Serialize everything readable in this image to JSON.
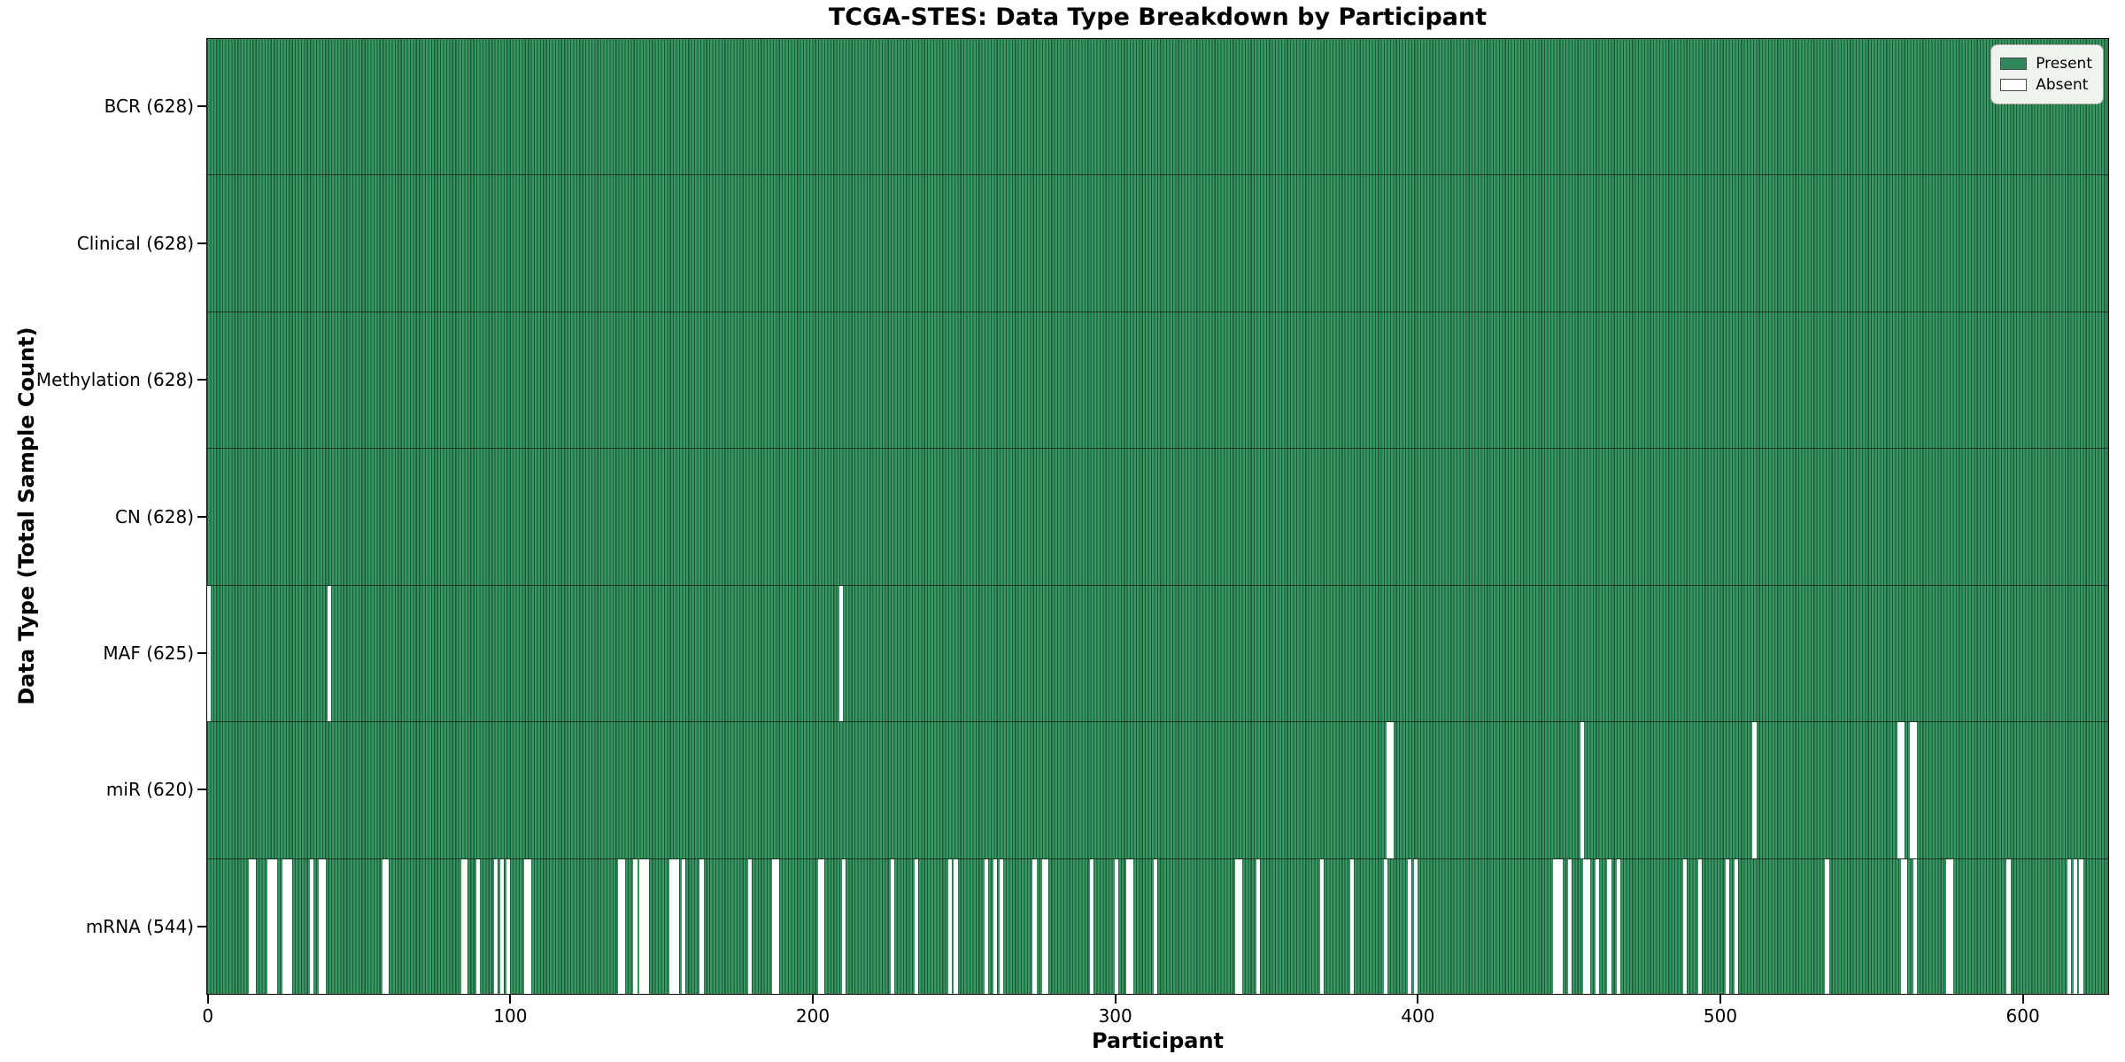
{
  "colors": {
    "present_fill": "#389663",
    "present_edge": "#1d5837",
    "legend_present": "#2e8659",
    "absent": "#ffffff",
    "row_separator": "rgba(0,0,0,0.6)",
    "spine": "#000000"
  },
  "legend": {
    "position": "upper right",
    "labels": [
      "Present",
      "Absent"
    ]
  },
  "chart_data": {
    "type": "heatmap",
    "title": "TCGA-STES: Data Type Breakdown by Participant",
    "xlabel": "Participant",
    "ylabel": "Data Type (Total Sample Count)",
    "legend_labels": [
      "Present",
      "Absent"
    ],
    "n_participants": 628,
    "x_ticks": [
      0,
      100,
      200,
      300,
      400,
      500,
      600
    ],
    "x_range": [
      -0.5,
      628.5
    ],
    "grid": false,
    "rows": [
      {
        "name": "BCR",
        "label": "BCR (628)",
        "total": 628,
        "absent": []
      },
      {
        "name": "Clinical",
        "label": "Clinical (628)",
        "total": 628,
        "absent": []
      },
      {
        "name": "Methylation",
        "label": "Methylation (628)",
        "total": 628,
        "absent": []
      },
      {
        "name": "CN",
        "label": "CN (628)",
        "total": 628,
        "absent": []
      },
      {
        "name": "MAF",
        "label": "MAF (625)",
        "total": 625,
        "absent": [
          0,
          40,
          209
        ]
      },
      {
        "name": "miR",
        "label": "miR (620)",
        "total": 620,
        "absent": [
          390,
          391,
          454,
          511,
          559,
          560,
          563,
          564
        ]
      },
      {
        "name": "mRNA",
        "label": "mRNA (544)",
        "total": 544,
        "absent": [
          14,
          15,
          20,
          21,
          22,
          25,
          26,
          27,
          34,
          37,
          38,
          58,
          59,
          84,
          85,
          89,
          95,
          97,
          99,
          105,
          106,
          136,
          137,
          141,
          143,
          144,
          145,
          153,
          154,
          155,
          157,
          163,
          179,
          187,
          188,
          202,
          203,
          210,
          226,
          234,
          245,
          247,
          257,
          260,
          262,
          273,
          276,
          277,
          292,
          300,
          304,
          305,
          313,
          340,
          341,
          347,
          368,
          378,
          389,
          397,
          399,
          445,
          446,
          447,
          450,
          455,
          456,
          459,
          463,
          466,
          488,
          493,
          502,
          505,
          535,
          560,
          561,
          564,
          575,
          576,
          595,
          615,
          617,
          619
        ]
      }
    ]
  }
}
